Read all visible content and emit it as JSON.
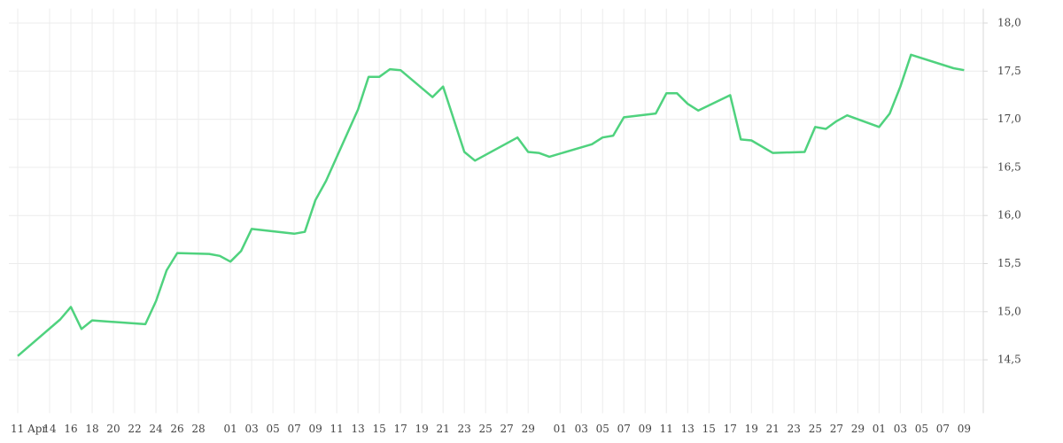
{
  "chart_data": {
    "type": "line",
    "x": [
      0,
      4,
      5,
      6,
      7,
      12,
      13,
      14,
      15,
      18,
      19,
      20,
      21,
      22,
      26,
      27,
      28,
      29,
      32,
      33,
      34,
      35,
      36,
      39,
      40,
      42,
      43,
      47,
      48,
      49,
      50,
      54,
      55,
      56,
      57,
      60,
      61,
      62,
      63,
      64,
      67,
      68,
      69,
      71,
      74,
      75,
      76,
      77,
      78,
      81,
      82,
      83,
      84,
      88,
      89
    ],
    "series": [
      {
        "color": "#4fd27e",
        "values": [
          14.54,
          14.92,
          15.05,
          14.82,
          14.91,
          14.87,
          15.11,
          15.43,
          15.61,
          15.6,
          15.58,
          15.52,
          15.63,
          15.86,
          15.81,
          15.83,
          16.16,
          16.36,
          17.1,
          17.44,
          17.44,
          17.52,
          17.51,
          17.23,
          17.34,
          16.66,
          16.57,
          16.81,
          16.66,
          16.65,
          16.61,
          16.74,
          16.81,
          16.83,
          17.02,
          17.06,
          17.27,
          17.27,
          17.16,
          17.09,
          17.25,
          16.79,
          16.78,
          16.65,
          16.66,
          16.92,
          16.9,
          16.98,
          17.04,
          16.92,
          17.06,
          17.34,
          17.67,
          17.53,
          17.51
        ]
      }
    ],
    "xlim": [
      0,
      90.8
    ],
    "xticks": [
      {
        "value": 0,
        "label": "11 Apr"
      },
      {
        "value": 3,
        "label": "14"
      },
      {
        "value": 5,
        "label": "16"
      },
      {
        "value": 7,
        "label": "18"
      },
      {
        "value": 9,
        "label": "20"
      },
      {
        "value": 11,
        "label": "22"
      },
      {
        "value": 13,
        "label": "24"
      },
      {
        "value": 15,
        "label": "26"
      },
      {
        "value": 17,
        "label": "28"
      },
      {
        "value": 20,
        "label": "01"
      },
      {
        "value": 22,
        "label": "03"
      },
      {
        "value": 24,
        "label": "05"
      },
      {
        "value": 26,
        "label": "07"
      },
      {
        "value": 28,
        "label": "09"
      },
      {
        "value": 30,
        "label": "11"
      },
      {
        "value": 32,
        "label": "13"
      },
      {
        "value": 34,
        "label": "15"
      },
      {
        "value": 36,
        "label": "17"
      },
      {
        "value": 38,
        "label": "19"
      },
      {
        "value": 40,
        "label": "21"
      },
      {
        "value": 42,
        "label": "23"
      },
      {
        "value": 44,
        "label": "25"
      },
      {
        "value": 46,
        "label": "27"
      },
      {
        "value": 48,
        "label": "29"
      },
      {
        "value": 51,
        "label": "01"
      },
      {
        "value": 53,
        "label": "03"
      },
      {
        "value": 55,
        "label": "05"
      },
      {
        "value": 57,
        "label": "07"
      },
      {
        "value": 59,
        "label": "09"
      },
      {
        "value": 61,
        "label": "11"
      },
      {
        "value": 63,
        "label": "13"
      },
      {
        "value": 65,
        "label": "15"
      },
      {
        "value": 67,
        "label": "17"
      },
      {
        "value": 69,
        "label": "19"
      },
      {
        "value": 71,
        "label": "21"
      },
      {
        "value": 73,
        "label": "23"
      },
      {
        "value": 75,
        "label": "25"
      },
      {
        "value": 77,
        "label": "27"
      },
      {
        "value": 79,
        "label": "29"
      },
      {
        "value": 81,
        "label": "01"
      },
      {
        "value": 83,
        "label": "03"
      },
      {
        "value": 85,
        "label": "05"
      },
      {
        "value": 87,
        "label": "07"
      },
      {
        "value": 89,
        "label": "09"
      }
    ],
    "ylim": [
      14,
      18.15
    ],
    "yticks": [
      {
        "value": 14.5,
        "label": "14,5"
      },
      {
        "value": 15,
        "label": "15,0"
      },
      {
        "value": 15.5,
        "label": "15,5"
      },
      {
        "value": 16,
        "label": "16,0"
      },
      {
        "value": 16.5,
        "label": "16,5"
      },
      {
        "value": 17,
        "label": "17,0"
      },
      {
        "value": 17.5,
        "label": "17,5"
      },
      {
        "value": 18,
        "label": "18,0"
      }
    ],
    "grid": true
  }
}
